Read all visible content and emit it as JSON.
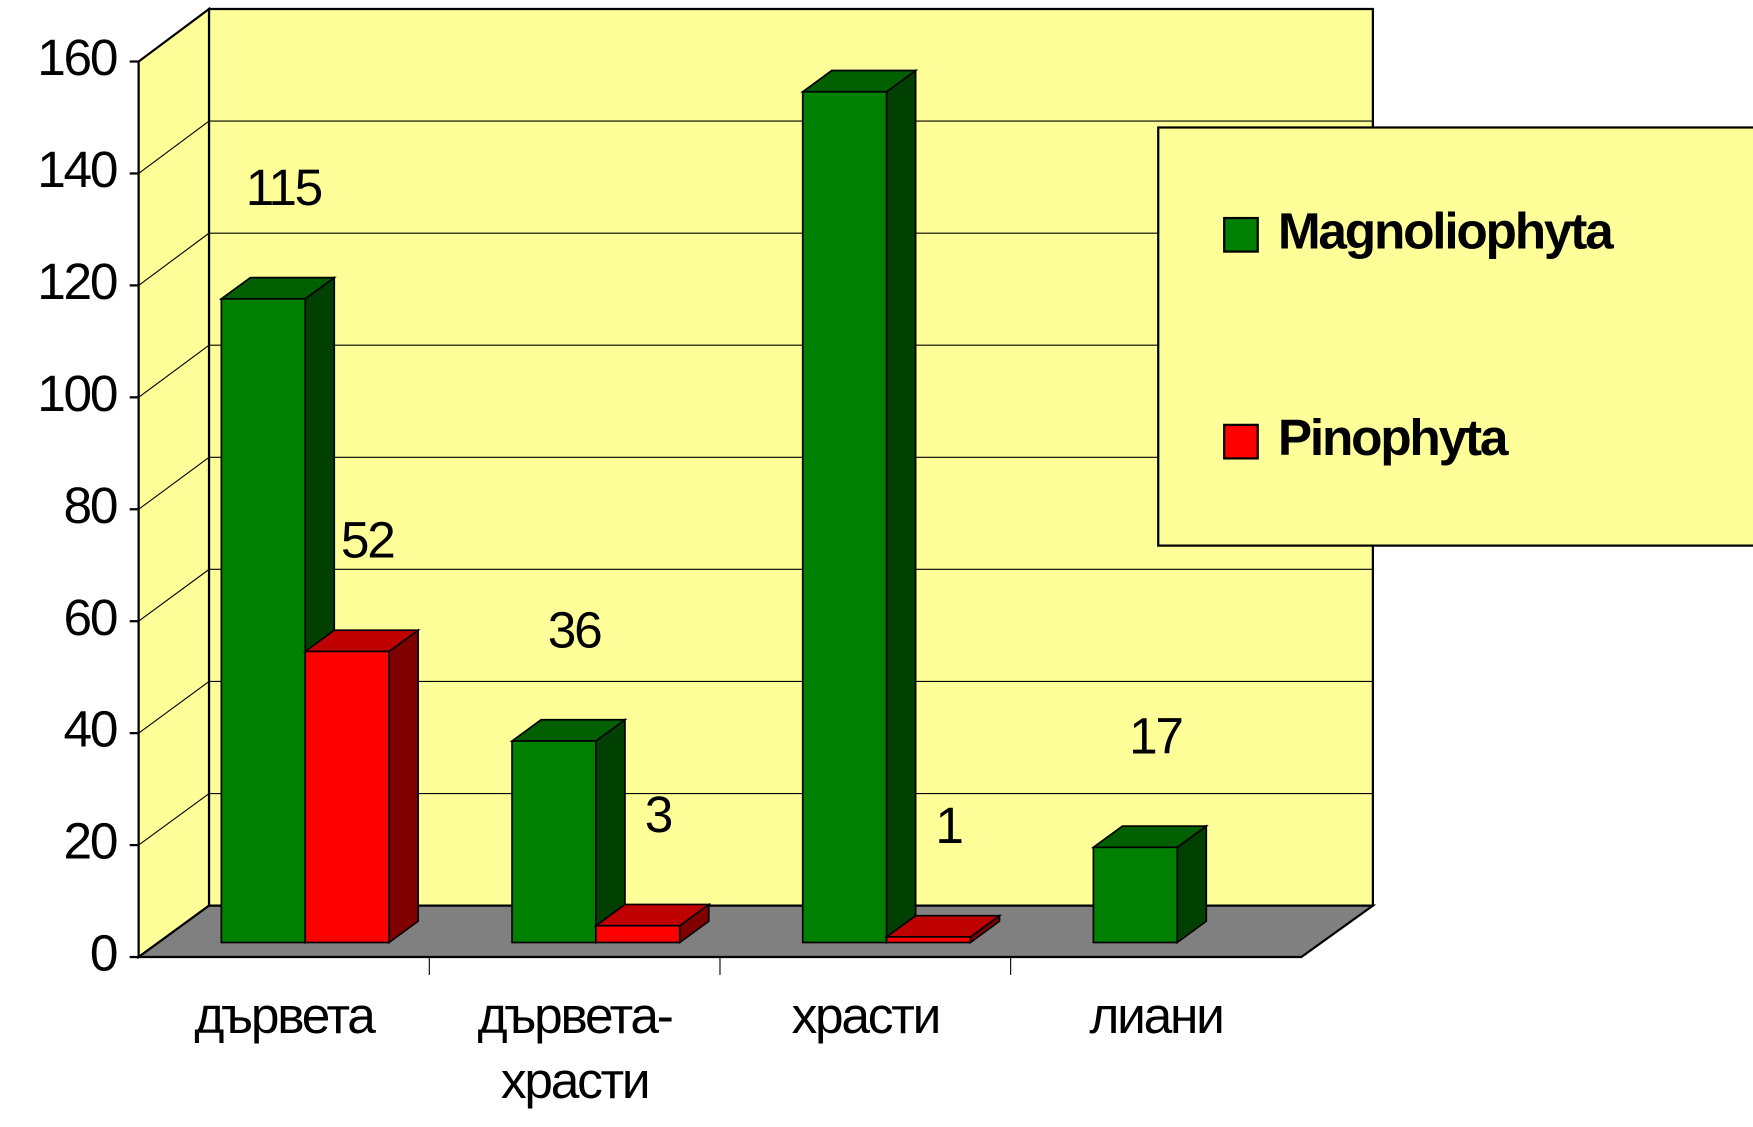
{
  "chart_data": {
    "type": "bar3d",
    "categories": [
      "дървета",
      "дървета-храсти",
      "храсти",
      "лиани"
    ],
    "series": [
      {
        "name": "Magnoliophyta",
        "color": "#008000",
        "values": [
          115,
          36,
          152,
          17
        ]
      },
      {
        "name": "Pinophyta",
        "color": "#ff0000",
        "values": [
          52,
          3,
          1,
          null
        ]
      }
    ],
    "ylim": [
      0,
      160
    ],
    "yticks": [
      0,
      20,
      40,
      60,
      80,
      100,
      120,
      140,
      160
    ],
    "grid": true,
    "legend": "right",
    "data_labels": true
  }
}
